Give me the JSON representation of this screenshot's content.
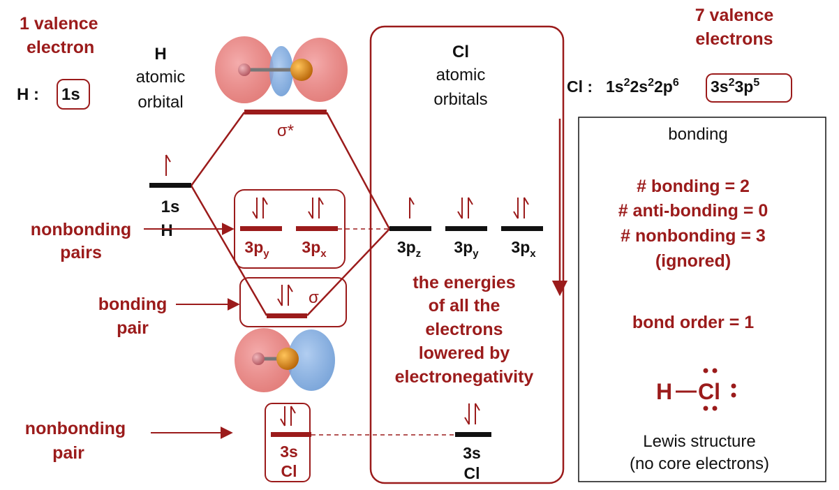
{
  "colors": {
    "accent": "#9b1b1b",
    "black": "#111111",
    "lobe_red": "#e36c6c",
    "lobe_blue": "#6f9fd8",
    "cl_atom": "#d8830f",
    "h_atom": "#c9737a"
  },
  "header": {
    "h_valence_line1": "1 valence",
    "h_valence_line2": "electron",
    "h_config_label": "H :",
    "h_config_boxed": "1s",
    "h_title_symbol": "H",
    "h_title_line1": "atomic",
    "h_title_line2": "orbital",
    "cl_valence_line1": "7 valence",
    "cl_valence_line2": "electrons",
    "cl_title_symbol": "Cl",
    "cl_title_line1": "atomic",
    "cl_title_line2": "orbitals",
    "cl_config_prefix": "Cl :",
    "cl_config_core": "1s22s22p6",
    "cl_config_boxed": "3s23p5"
  },
  "levels": {
    "sigma_star": "σ*",
    "h_1s": "1s",
    "h_1s_sub": "H",
    "nb_3py": "3py",
    "nb_3px": "3px",
    "sigma": "σ",
    "nb_3s": "3s",
    "nb_3s_sub": "Cl",
    "cl_3pz": "3pz",
    "cl_3py": "3py",
    "cl_3px": "3px",
    "cl_3s": "3s",
    "cl_3s_sub": "Cl"
  },
  "labels": {
    "nonbonding_pairs_1": "nonbonding",
    "nonbonding_pairs_2": "pairs",
    "bonding_pair_1": "bonding",
    "bonding_pair_2": "pair",
    "nonbonding_pair_1": "nonbonding",
    "nonbonding_pair_2": "pair"
  },
  "energy_note": [
    "the energies",
    "of all the",
    "electrons",
    "lowered by",
    "electronegativity"
  ],
  "bonding_panel": {
    "heading": "bonding",
    "bonding_count": "# bonding = 2",
    "antibonding_count": "# anti-bonding = 0",
    "nonbonding_count": "# nonbonding = 3",
    "ignored": "(ignored)",
    "bond_order": "bond order = 1",
    "lewis_h": "H",
    "lewis_cl": "Cl",
    "lewis_caption_1": "Lewis structure",
    "lewis_caption_2": "(no core electrons)"
  }
}
